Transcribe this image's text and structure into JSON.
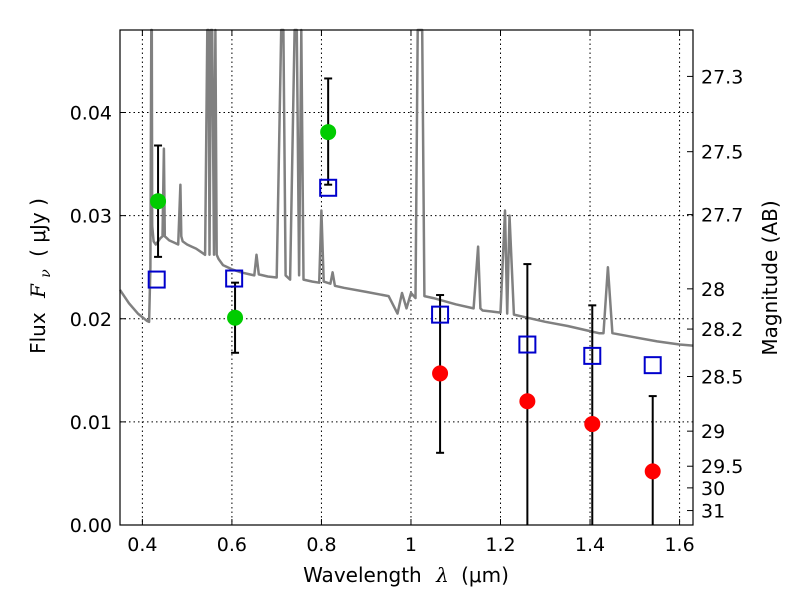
{
  "chart_data": {
    "type": "scatter",
    "title": "",
    "xlabel_main": "Wavelength",
    "xlabel_symbol": "λ",
    "xlabel_unit": "(μm)",
    "ylabel_main": "Flux",
    "ylabel_symbol": "F",
    "ylabel_subscript": "ν",
    "ylabel_unit": "( μJy )",
    "ylabel_right": "Magnitude (AB)",
    "xlim": [
      0.35,
      1.63
    ],
    "ylim": [
      0.0,
      0.048
    ],
    "grid": true,
    "legend": "none",
    "x_ticks": [
      0.4,
      0.6,
      0.8,
      1.0,
      1.2,
      1.4,
      1.6
    ],
    "x_tick_labels": [
      "0.4",
      "0.6",
      "0.8",
      "1",
      "1.2",
      "1.4",
      "1.6"
    ],
    "y_ticks": [
      0.0,
      0.01,
      0.02,
      0.03,
      0.04
    ],
    "y_tick_labels": [
      "0.00",
      "0.01",
      "0.02",
      "0.03",
      "0.04"
    ],
    "right_ticks": [
      {
        "label": "27.3",
        "flux": 0.0435
      },
      {
        "label": "27.5",
        "flux": 0.0362
      },
      {
        "label": "27.7",
        "flux": 0.0301
      },
      {
        "label": "28",
        "flux": 0.0229
      },
      {
        "label": "28.2",
        "flux": 0.019
      },
      {
        "label": "28.5",
        "flux": 0.0144
      },
      {
        "label": "29",
        "flux": 0.0091
      },
      {
        "label": "29.5",
        "flux": 0.0057
      },
      {
        "label": "30",
        "flux": 0.0036
      },
      {
        "label": "31",
        "flux": 0.0014
      }
    ],
    "series": [
      {
        "marker": "line",
        "color": "#808080",
        "x": [
          0.35,
          0.37,
          0.39,
          0.41,
          0.415,
          0.418,
          0.42,
          0.421,
          0.422,
          0.425,
          0.43,
          0.435,
          0.44,
          0.445,
          0.448,
          0.45,
          0.455,
          0.46,
          0.47,
          0.48,
          0.485,
          0.487,
          0.49,
          0.5,
          0.51,
          0.52,
          0.53,
          0.54,
          0.545,
          0.548,
          0.55,
          0.553,
          0.556,
          0.56,
          0.563,
          0.566,
          0.57,
          0.58,
          0.6,
          0.62,
          0.64,
          0.65,
          0.655,
          0.66,
          0.68,
          0.7,
          0.71,
          0.715,
          0.72,
          0.73,
          0.74,
          0.745,
          0.75,
          0.755,
          0.76,
          0.78,
          0.795,
          0.8,
          0.805,
          0.82,
          0.825,
          0.83,
          0.85,
          0.9,
          0.95,
          0.97,
          0.98,
          0.99,
          1.0,
          1.01,
          1.015,
          1.02,
          1.025,
          1.03,
          1.05,
          1.1,
          1.14,
          1.15,
          1.155,
          1.16,
          1.18,
          1.2,
          1.21,
          1.215,
          1.22,
          1.23,
          1.25,
          1.3,
          1.35,
          1.4,
          1.42,
          1.43,
          1.44,
          1.45,
          1.5,
          1.55,
          1.6,
          1.63
        ],
        "y": [
          0.0228,
          0.0215,
          0.0205,
          0.0198,
          0.0197,
          0.025,
          0.048,
          0.048,
          0.029,
          0.0275,
          0.0272,
          0.0275,
          0.0278,
          0.028,
          0.0365,
          0.028,
          0.0278,
          0.0276,
          0.0274,
          0.0272,
          0.033,
          0.028,
          0.0275,
          0.0272,
          0.027,
          0.0268,
          0.0265,
          0.0262,
          0.048,
          0.048,
          0.0262,
          0.048,
          0.048,
          0.0262,
          0.048,
          0.0262,
          0.0258,
          0.0252,
          0.0248,
          0.0245,
          0.0243,
          0.0242,
          0.0262,
          0.0243,
          0.0241,
          0.024,
          0.048,
          0.048,
          0.0242,
          0.0238,
          0.048,
          0.048,
          0.0242,
          0.048,
          0.0238,
          0.0236,
          0.0235,
          0.0305,
          0.0236,
          0.0234,
          0.0245,
          0.0232,
          0.023,
          0.0226,
          0.0222,
          0.0205,
          0.0225,
          0.021,
          0.0225,
          0.022,
          0.048,
          0.048,
          0.048,
          0.0222,
          0.022,
          0.0214,
          0.021,
          0.027,
          0.021,
          0.0208,
          0.0207,
          0.0206,
          0.0305,
          0.0205,
          0.03,
          0.0204,
          0.0202,
          0.0197,
          0.0193,
          0.0188,
          0.0186,
          0.0186,
          0.025,
          0.0186,
          0.0182,
          0.0178,
          0.0175,
          0.0174
        ]
      },
      {
        "marker": "square",
        "color": "#0000cc",
        "x": [
          0.432,
          0.605,
          0.815,
          1.065,
          1.26,
          1.405,
          1.54
        ],
        "y": [
          0.0238,
          0.0239,
          0.0327,
          0.0204,
          0.0175,
          0.0164,
          0.0155
        ]
      },
      {
        "marker": "circle",
        "color": "#00cc00",
        "x": [
          0.435,
          0.607,
          0.815
        ],
        "y": [
          0.0314,
          0.0201,
          0.0381
        ],
        "yerr_low": [
          0.026,
          0.0167,
          0.033
        ],
        "yerr_high": [
          0.0368,
          0.0235,
          0.0433
        ]
      },
      {
        "marker": "circle",
        "color": "#ff0000",
        "x": [
          1.065,
          1.26,
          1.405,
          1.54
        ],
        "y": [
          0.0147,
          0.012,
          0.0098,
          0.0052
        ],
        "yerr_low": [
          0.007,
          0.0,
          0.0,
          0.0
        ],
        "yerr_high": [
          0.0223,
          0.0253,
          0.0213,
          0.0125
        ]
      }
    ]
  }
}
